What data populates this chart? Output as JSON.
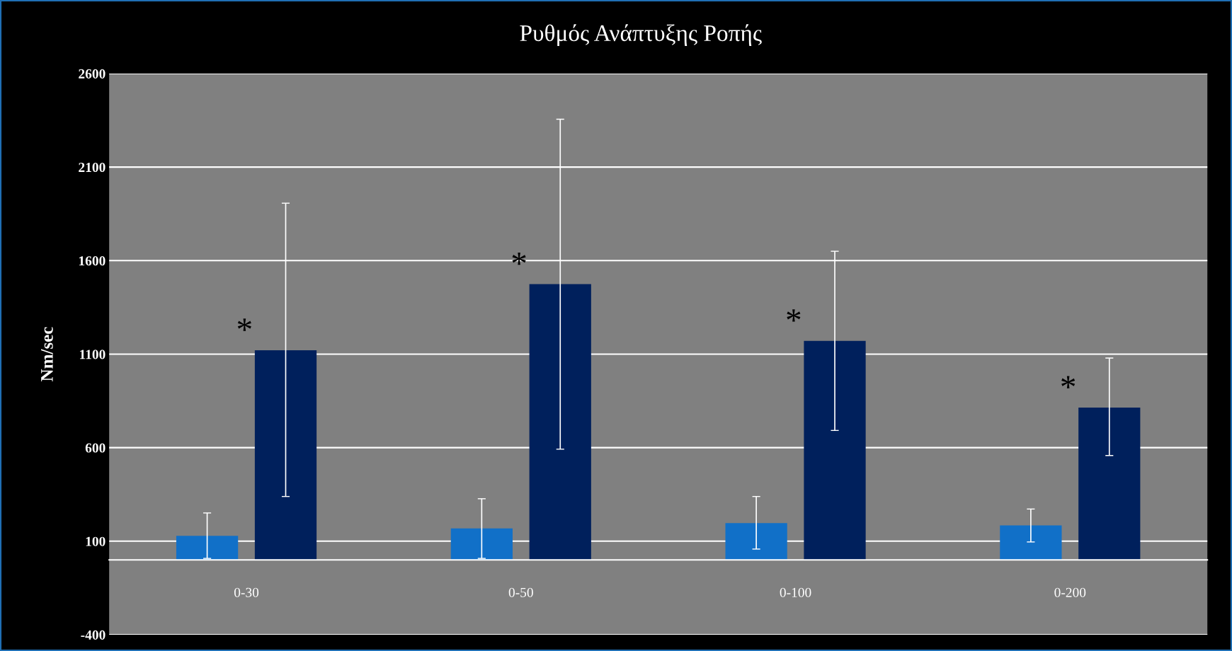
{
  "chart_data": {
    "type": "bar",
    "title": "Ρυθμός Ανάπτυξης Ροπής",
    "ylabel": "Nm/sec",
    "categories": [
      "0-30",
      "0-50",
      "0-100",
      "0-200"
    ],
    "series": [
      {
        "color": "#1170c8",
        "values": [
          129,
          168,
          197,
          184
        ],
        "errors": [
          [
            8,
            251
          ],
          [
            8,
            327
          ],
          [
            58,
            339
          ],
          [
            96,
            272
          ]
        ]
      },
      {
        "color": "#00205c",
        "values": [
          1121,
          1474,
          1171,
          814
        ],
        "errors": [
          [
            339,
            1907
          ],
          [
            592,
            2356
          ],
          [
            692,
            1650
          ],
          [
            558,
            1079
          ]
        ]
      }
    ],
    "ylim": [
      -400,
      2600
    ],
    "yticks": [
      -400,
      100,
      600,
      1100,
      1600,
      2100,
      2600
    ],
    "grid": "y",
    "legend": false,
    "annotations": [
      "*",
      "*",
      "*",
      "*"
    ]
  }
}
